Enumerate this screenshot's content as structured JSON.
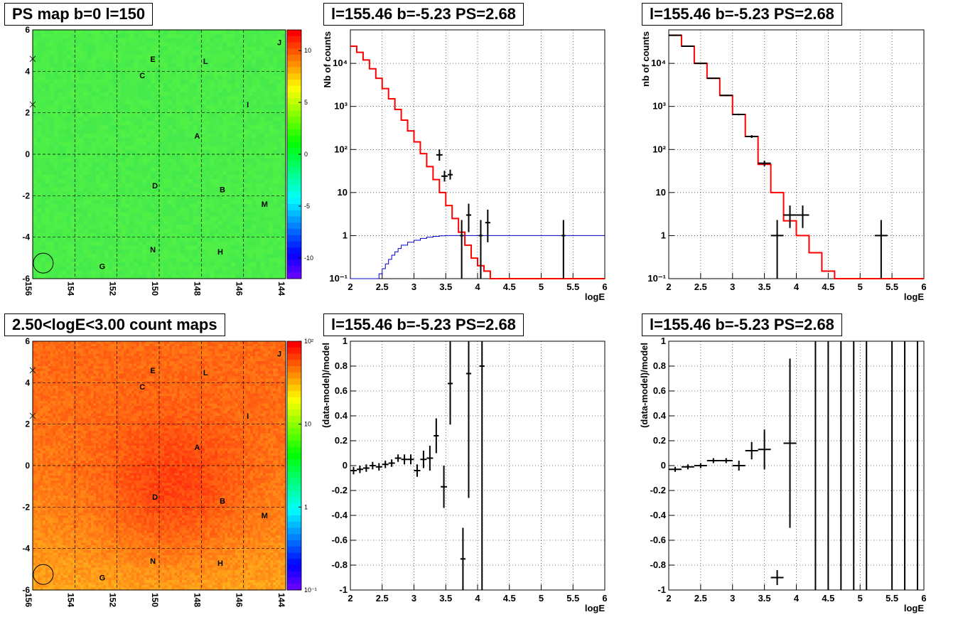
{
  "panels": {
    "map_top": {
      "title": "PS map b=0 l=150"
    },
    "map_bottom": {
      "title": "2.50<logE<3.00 count maps"
    },
    "spec_left": {
      "title": "l=155.46 b=-5.23 PS=2.68"
    },
    "spec_right": {
      "title": "l=155.46 b=-5.23 PS=2.68"
    },
    "res_left": {
      "title": "l=155.46 b=-5.23 PS=2.68"
    },
    "res_right": {
      "title": "l=155.46 b=-5.23 PS=2.68"
    }
  },
  "colors": {
    "data": "#000000",
    "model": "#ff0000",
    "ps_model": "#0000cc",
    "grid": "#000000"
  },
  "chart_data": [
    {
      "type": "heatmap",
      "title": "PS map b=0 l=150",
      "xlim": [
        156,
        144
      ],
      "ylim": [
        -6,
        6
      ],
      "x_ticks": [
        "156",
        "154",
        "152",
        "150",
        "148",
        "146",
        "144"
      ],
      "y_ticks": [
        "6",
        "4",
        "2",
        "0",
        "-2",
        "-4",
        "-6"
      ],
      "colorbar": {
        "min": -12,
        "max": 12,
        "ticks": [
          "10",
          "5",
          "0",
          "-5",
          "-10"
        ]
      },
      "dominant_color": "green",
      "sources": [
        {
          "label": "A",
          "l": 148.2,
          "b": 0.9
        },
        {
          "label": "B",
          "l": 147.0,
          "b": -1.7
        },
        {
          "label": "C",
          "l": 150.8,
          "b": 3.8
        },
        {
          "label": "D",
          "l": 150.2,
          "b": -1.5
        },
        {
          "label": "E",
          "l": 150.3,
          "b": 4.6
        },
        {
          "label": "G",
          "l": 152.7,
          "b": -5.4
        },
        {
          "label": "H",
          "l": 147.1,
          "b": -4.7
        },
        {
          "label": "I",
          "l": 145.8,
          "b": 2.4
        },
        {
          "label": "J",
          "l": 144.3,
          "b": 5.4
        },
        {
          "label": "L",
          "l": 147.8,
          "b": 4.5
        },
        {
          "label": "M",
          "l": 145.0,
          "b": -2.4
        },
        {
          "label": "N",
          "l": 150.3,
          "b": -4.6
        }
      ]
    },
    {
      "type": "heatmap",
      "title": "2.50<logE<3.00 count maps",
      "xlim": [
        156,
        144
      ],
      "ylim": [
        -6,
        6
      ],
      "x_ticks": [
        "156",
        "154",
        "152",
        "150",
        "148",
        "146",
        "144"
      ],
      "y_ticks": [
        "6",
        "4",
        "2",
        "0",
        "-2",
        "-4",
        "-6"
      ],
      "colorbar": {
        "scale": "log",
        "min": 0.1,
        "max": 100,
        "ticks": [
          "10²",
          "10",
          "1",
          "10⁻¹"
        ]
      },
      "dominant_color": "orange-red",
      "sources": [
        {
          "label": "A",
          "l": 148.2,
          "b": 0.9
        },
        {
          "label": "B",
          "l": 147.0,
          "b": -1.7
        },
        {
          "label": "C",
          "l": 150.8,
          "b": 3.8
        },
        {
          "label": "D",
          "l": 150.2,
          "b": -1.5
        },
        {
          "label": "E",
          "l": 150.3,
          "b": 4.6
        },
        {
          "label": "G",
          "l": 152.7,
          "b": -5.4
        },
        {
          "label": "H",
          "l": 147.1,
          "b": -4.7
        },
        {
          "label": "I",
          "l": 145.8,
          "b": 2.4
        },
        {
          "label": "J",
          "l": 144.3,
          "b": 5.4
        },
        {
          "label": "L",
          "l": 147.8,
          "b": 4.5
        },
        {
          "label": "M",
          "l": 145.0,
          "b": -2.4
        },
        {
          "label": "N",
          "l": 150.3,
          "b": -4.6
        }
      ]
    },
    {
      "type": "line",
      "title": "l=155.46 b=-5.23 PS=2.68",
      "xlabel": "logE",
      "ylabel": "Nb of counts",
      "xlim": [
        2,
        6
      ],
      "ylim": [
        0.1,
        60000
      ],
      "yscale": "log",
      "x_ticks": [
        "2",
        "2.5",
        "3",
        "3.5",
        "4",
        "4.5",
        "5",
        "5.5",
        "6"
      ],
      "y_ticks": [
        "10⁴",
        "10³",
        "10²",
        "10",
        "1",
        "10⁻¹"
      ],
      "grid": true,
      "series": [
        {
          "style": "step",
          "color": "red",
          "edges": [
            2.0,
            2.1,
            2.2,
            2.3,
            2.4,
            2.5,
            2.6,
            2.7,
            2.8,
            2.9,
            3.0,
            3.1,
            3.2,
            3.3,
            3.4,
            3.5,
            3.6,
            3.7,
            3.8,
            3.9,
            4.0,
            4.1,
            4.2,
            4.3,
            4.4,
            6.0
          ],
          "values": [
            25000,
            18000,
            12000,
            7500,
            4500,
            2600,
            1500,
            850,
            480,
            270,
            150,
            80,
            40,
            20,
            10,
            5,
            2.5,
            1.2,
            0.6,
            0.3,
            0.2,
            0.15,
            0.1,
            0.1,
            0.1
          ]
        },
        {
          "style": "step",
          "color": "blue",
          "edges": [
            2.0,
            2.45,
            2.5,
            2.55,
            2.6,
            2.65,
            2.7,
            2.75,
            2.8,
            2.9,
            3.0,
            3.1,
            3.2,
            3.3,
            3.4,
            3.5,
            6.0
          ],
          "values": [
            0.1,
            0.13,
            0.17,
            0.22,
            0.28,
            0.35,
            0.42,
            0.5,
            0.6,
            0.7,
            0.78,
            0.86,
            0.92,
            0.96,
            0.99,
            1.0
          ]
        },
        {
          "style": "errorbars",
          "color": "black",
          "points": [
            {
              "x": 3.4,
              "y": 75,
              "xerr": 0.05,
              "ylo": 55,
              "yhi": 100
            },
            {
              "x": 3.48,
              "y": 24,
              "xerr": 0.05,
              "ylo": 18,
              "yhi": 32
            },
            {
              "x": 3.57,
              "y": 26,
              "xerr": 0.04,
              "ylo": 20,
              "yhi": 34
            },
            {
              "x": 3.75,
              "y": 1,
              "xerr": 0.03,
              "ylo": 0.1,
              "yhi": 2.3
            },
            {
              "x": 3.86,
              "y": 3,
              "xerr": 0.04,
              "ylo": 1.2,
              "yhi": 5.5
            },
            {
              "x": 4.05,
              "y": 1,
              "xerr": 0.03,
              "ylo": 0.1,
              "yhi": 2.3
            },
            {
              "x": 4.16,
              "y": 2,
              "xerr": 0.04,
              "ylo": 0.7,
              "yhi": 4
            },
            {
              "x": 5.35,
              "y": 1,
              "xerr": 0.03,
              "ylo": 0.1,
              "yhi": 2.3
            }
          ]
        }
      ]
    },
    {
      "type": "line",
      "title": "l=155.46 b=-5.23 PS=2.68",
      "xlabel": "logE",
      "ylabel": "nb of counts",
      "xlim": [
        2,
        6
      ],
      "ylim": [
        0.1,
        60000
      ],
      "yscale": "log",
      "x_ticks": [
        "2",
        "2.5",
        "3",
        "3.5",
        "4",
        "4.5",
        "5",
        "5.5",
        "6"
      ],
      "y_ticks": [
        "10⁴",
        "10³",
        "10²",
        "10",
        "1",
        "10⁻¹"
      ],
      "grid": true,
      "series": [
        {
          "style": "step",
          "color": "red",
          "edges": [
            2.0,
            2.2,
            2.4,
            2.6,
            2.8,
            3.0,
            3.2,
            3.4,
            3.6,
            3.8,
            4.0,
            4.2,
            4.4,
            4.6,
            6.0
          ],
          "values": [
            45000,
            25000,
            10000,
            4500,
            1800,
            650,
            200,
            45,
            10,
            2.2,
            1.0,
            0.4,
            0.15,
            0.1
          ]
        },
        {
          "style": "errorbars",
          "color": "black",
          "points": [
            {
              "x": 2.1,
              "y": 45000,
              "xerr": 0.1,
              "ylo": 44000,
              "yhi": 46000
            },
            {
              "x": 2.3,
              "y": 25000,
              "xerr": 0.1,
              "ylo": 24500,
              "yhi": 25500
            },
            {
              "x": 2.5,
              "y": 10000,
              "xerr": 0.1,
              "ylo": 9800,
              "yhi": 10200
            },
            {
              "x": 2.7,
              "y": 4500,
              "xerr": 0.1,
              "ylo": 4350,
              "yhi": 4650
            },
            {
              "x": 2.9,
              "y": 1800,
              "xerr": 0.1,
              "ylo": 1740,
              "yhi": 1860
            },
            {
              "x": 3.1,
              "y": 650,
              "xerr": 0.1,
              "ylo": 620,
              "yhi": 680
            },
            {
              "x": 3.3,
              "y": 200,
              "xerr": 0.1,
              "ylo": 185,
              "yhi": 215
            },
            {
              "x": 3.5,
              "y": 48,
              "xerr": 0.1,
              "ylo": 41,
              "yhi": 55
            },
            {
              "x": 3.7,
              "y": 1,
              "xerr": 0.1,
              "ylo": 0.1,
              "yhi": 2.3
            },
            {
              "x": 3.9,
              "y": 3,
              "xerr": 0.1,
              "ylo": 1.5,
              "yhi": 5
            },
            {
              "x": 4.1,
              "y": 3,
              "xerr": 0.1,
              "ylo": 1.5,
              "yhi": 5
            },
            {
              "x": 5.33,
              "y": 1,
              "xerr": 0.1,
              "ylo": 0.1,
              "yhi": 2.3
            }
          ]
        }
      ]
    },
    {
      "type": "scatter",
      "title": "l=155.46 b=-5.23 PS=2.68",
      "xlabel": "logE",
      "ylabel": "(data-model)/model",
      "xlim": [
        2,
        6
      ],
      "ylim": [
        -1,
        1
      ],
      "x_ticks": [
        "2",
        "2.5",
        "3",
        "3.5",
        "4",
        "4.5",
        "5",
        "5.5",
        "6"
      ],
      "y_ticks": [
        "1",
        "0.8",
        "0.6",
        "0.4",
        "0.2",
        "0",
        "-0.2",
        "-0.4",
        "-0.6",
        "-0.8",
        "-1"
      ],
      "grid": true,
      "series": [
        {
          "style": "errorbars",
          "color": "black",
          "points": [
            {
              "x": 2.05,
              "y": -0.04,
              "xerr": 0.05,
              "ylo": -0.07,
              "yhi": -0.01
            },
            {
              "x": 2.15,
              "y": -0.03,
              "xerr": 0.05,
              "ylo": -0.06,
              "yhi": 0.0
            },
            {
              "x": 2.25,
              "y": -0.02,
              "xerr": 0.05,
              "ylo": -0.05,
              "yhi": 0.01
            },
            {
              "x": 2.35,
              "y": 0.0,
              "xerr": 0.05,
              "ylo": -0.03,
              "yhi": 0.03
            },
            {
              "x": 2.45,
              "y": -0.01,
              "xerr": 0.05,
              "ylo": -0.04,
              "yhi": 0.02
            },
            {
              "x": 2.55,
              "y": 0.01,
              "xerr": 0.05,
              "ylo": -0.02,
              "yhi": 0.04
            },
            {
              "x": 2.65,
              "y": 0.02,
              "xerr": 0.05,
              "ylo": -0.01,
              "yhi": 0.05
            },
            {
              "x": 2.75,
              "y": 0.06,
              "xerr": 0.05,
              "ylo": 0.03,
              "yhi": 0.09
            },
            {
              "x": 2.85,
              "y": 0.05,
              "xerr": 0.05,
              "ylo": 0.01,
              "yhi": 0.09
            },
            {
              "x": 2.95,
              "y": 0.05,
              "xerr": 0.05,
              "ylo": 0.01,
              "yhi": 0.09
            },
            {
              "x": 3.05,
              "y": -0.04,
              "xerr": 0.05,
              "ylo": -0.09,
              "yhi": 0.01
            },
            {
              "x": 3.15,
              "y": 0.05,
              "xerr": 0.05,
              "ylo": -0.02,
              "yhi": 0.12
            },
            {
              "x": 3.25,
              "y": 0.06,
              "xerr": 0.05,
              "ylo": -0.04,
              "yhi": 0.16
            },
            {
              "x": 3.35,
              "y": 0.24,
              "xerr": 0.04,
              "ylo": 0.1,
              "yhi": 0.38
            },
            {
              "x": 3.47,
              "y": -0.17,
              "xerr": 0.05,
              "ylo": -0.34,
              "yhi": 0.0
            },
            {
              "x": 3.57,
              "y": 0.66,
              "xerr": 0.04,
              "ylo": 0.33,
              "yhi": 1.0
            },
            {
              "x": 3.77,
              "y": -0.75,
              "xerr": 0.04,
              "ylo": -1.0,
              "yhi": -0.5
            },
            {
              "x": 3.86,
              "y": 0.74,
              "xerr": 0.04,
              "ylo": -0.26,
              "yhi": 1.0
            },
            {
              "x": 4.07,
              "y": 0.8,
              "xerr": 0.04,
              "ylo": -1.0,
              "yhi": 1.0
            }
          ]
        }
      ]
    },
    {
      "type": "scatter",
      "title": "l=155.46 b=-5.23 PS=2.68",
      "xlabel": "logE",
      "ylabel": "(data-model)/model",
      "xlim": [
        2,
        6
      ],
      "ylim": [
        -1,
        1
      ],
      "x_ticks": [
        "2",
        "2.5",
        "3",
        "3.5",
        "4",
        "4.5",
        "5",
        "5.5",
        "6"
      ],
      "y_ticks": [
        "1",
        "0.8",
        "0.6",
        "0.4",
        "0.2",
        "0",
        "-0.2",
        "-0.4",
        "-0.6",
        "-0.8",
        "-1"
      ],
      "grid": true,
      "series": [
        {
          "style": "errorbars",
          "color": "black",
          "points": [
            {
              "x": 2.1,
              "y": -0.03,
              "xerr": 0.1,
              "ylo": -0.05,
              "yhi": -0.01
            },
            {
              "x": 2.3,
              "y": -0.01,
              "xerr": 0.1,
              "ylo": -0.03,
              "yhi": 0.01
            },
            {
              "x": 2.5,
              "y": 0.0,
              "xerr": 0.1,
              "ylo": -0.02,
              "yhi": 0.02
            },
            {
              "x": 2.7,
              "y": 0.04,
              "xerr": 0.1,
              "ylo": 0.02,
              "yhi": 0.06
            },
            {
              "x": 2.9,
              "y": 0.04,
              "xerr": 0.1,
              "ylo": 0.02,
              "yhi": 0.06
            },
            {
              "x": 3.1,
              "y": 0.0,
              "xerr": 0.1,
              "ylo": -0.04,
              "yhi": 0.04
            },
            {
              "x": 3.3,
              "y": 0.12,
              "xerr": 0.1,
              "ylo": 0.05,
              "yhi": 0.19
            },
            {
              "x": 3.5,
              "y": 0.13,
              "xerr": 0.1,
              "ylo": -0.03,
              "yhi": 0.29
            },
            {
              "x": 3.7,
              "y": -0.9,
              "xerr": 0.1,
              "ylo": -0.96,
              "yhi": -0.84
            },
            {
              "x": 3.9,
              "y": 0.18,
              "xerr": 0.1,
              "ylo": -0.5,
              "yhi": 0.86
            },
            {
              "x": 4.3,
              "y": 1.0,
              "xerr": 0,
              "ylo": -1.0,
              "yhi": 1.0
            },
            {
              "x": 4.5,
              "y": 1.0,
              "xerr": 0,
              "ylo": -1.0,
              "yhi": 1.0
            },
            {
              "x": 4.7,
              "y": 1.0,
              "xerr": 0,
              "ylo": -1.0,
              "yhi": 1.0
            },
            {
              "x": 4.9,
              "y": 1.0,
              "xerr": 0,
              "ylo": -1.0,
              "yhi": 1.0
            },
            {
              "x": 5.1,
              "y": 1.0,
              "xerr": 0,
              "ylo": -1.0,
              "yhi": 1.0
            },
            {
              "x": 5.5,
              "y": 1.0,
              "xerr": 0,
              "ylo": -1.0,
              "yhi": 1.0
            },
            {
              "x": 5.7,
              "y": 1.0,
              "xerr": 0,
              "ylo": -1.0,
              "yhi": 1.0
            },
            {
              "x": 5.9,
              "y": 1.0,
              "xerr": 0,
              "ylo": -1.0,
              "yhi": 1.0
            }
          ]
        }
      ]
    }
  ]
}
